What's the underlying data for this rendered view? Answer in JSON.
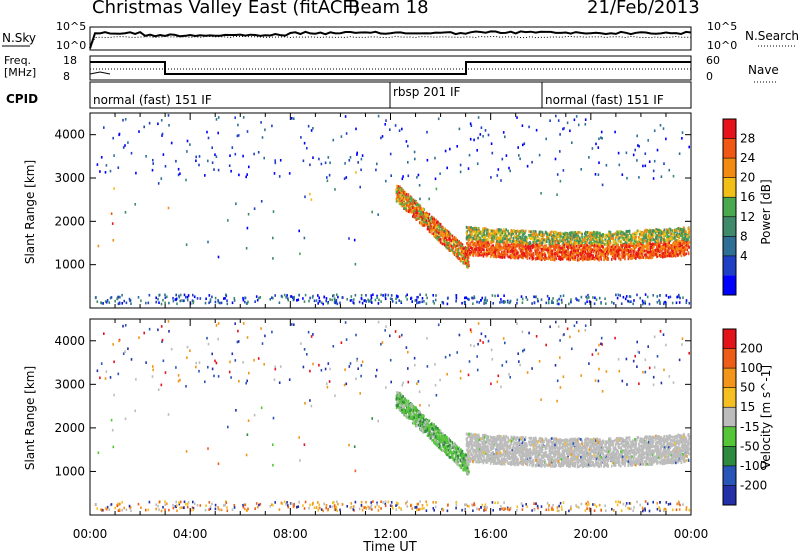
{
  "header": {
    "station": "Christmas Valley East (fitACF)",
    "beam": "Beam 18",
    "date": "21/Feb/2013"
  },
  "summary_panel": {
    "nsky_label": "N.Sky",
    "nsearch_label": "N.Search",
    "left_ticks": [
      "10^5",
      "10^0"
    ],
    "right_ticks": [
      "10^5",
      "10^0"
    ],
    "freq_label_1": "Freq.",
    "freq_label_2": "[MHz]",
    "freq_ticks": [
      "18",
      "8"
    ],
    "nave_label": "Nave",
    "nave_ticks": [
      "60",
      "0"
    ],
    "cpid_label": "CPID",
    "cpid_segments": [
      "normal (fast) 151 IF",
      "rbsp 201 IF",
      "normal (fast) 151 IF"
    ]
  },
  "chart_data": [
    {
      "type": "heatmap",
      "title": "",
      "ylabel": "Slant Range [km]",
      "xlabel": "",
      "x_ticks": [
        "00:00",
        "04:00",
        "08:00",
        "12:00",
        "16:00",
        "20:00",
        "00:00"
      ],
      "y_ticks": [
        "1000",
        "2000",
        "3000",
        "4000"
      ],
      "ylim": [
        0,
        4500
      ],
      "colorbar_label": "Power [dB]",
      "colorbar_ticks": [
        "28",
        "24",
        "20",
        "16",
        "12",
        "8",
        "4"
      ],
      "colors": [
        "#0000ff",
        "#1f3fc4",
        "#2f6f96",
        "#3f8a6a",
        "#4aa84f",
        "#f2bf16",
        "#f38a12",
        "#f05614",
        "#e6141a"
      ]
    },
    {
      "type": "heatmap",
      "title": "",
      "ylabel": "Slant Range [km]",
      "xlabel": "Time UT",
      "x_ticks": [
        "00:00",
        "04:00",
        "08:00",
        "12:00",
        "16:00",
        "20:00",
        "00:00"
      ],
      "y_ticks": [
        "1000",
        "2000",
        "3000",
        "4000"
      ],
      "ylim": [
        0,
        4500
      ],
      "colorbar_label": "Velocity [m s^-1]",
      "colorbar_ticks": [
        "200",
        "100",
        "50",
        "15",
        "-15",
        "-50",
        "-100",
        "-200"
      ],
      "colors": [
        "#2330a8",
        "#2a55b8",
        "#2e8a3e",
        "#55c638",
        "#bcbcbc",
        "#f5bf22",
        "#f2951a",
        "#ee5d18",
        "#e3131a"
      ]
    }
  ]
}
